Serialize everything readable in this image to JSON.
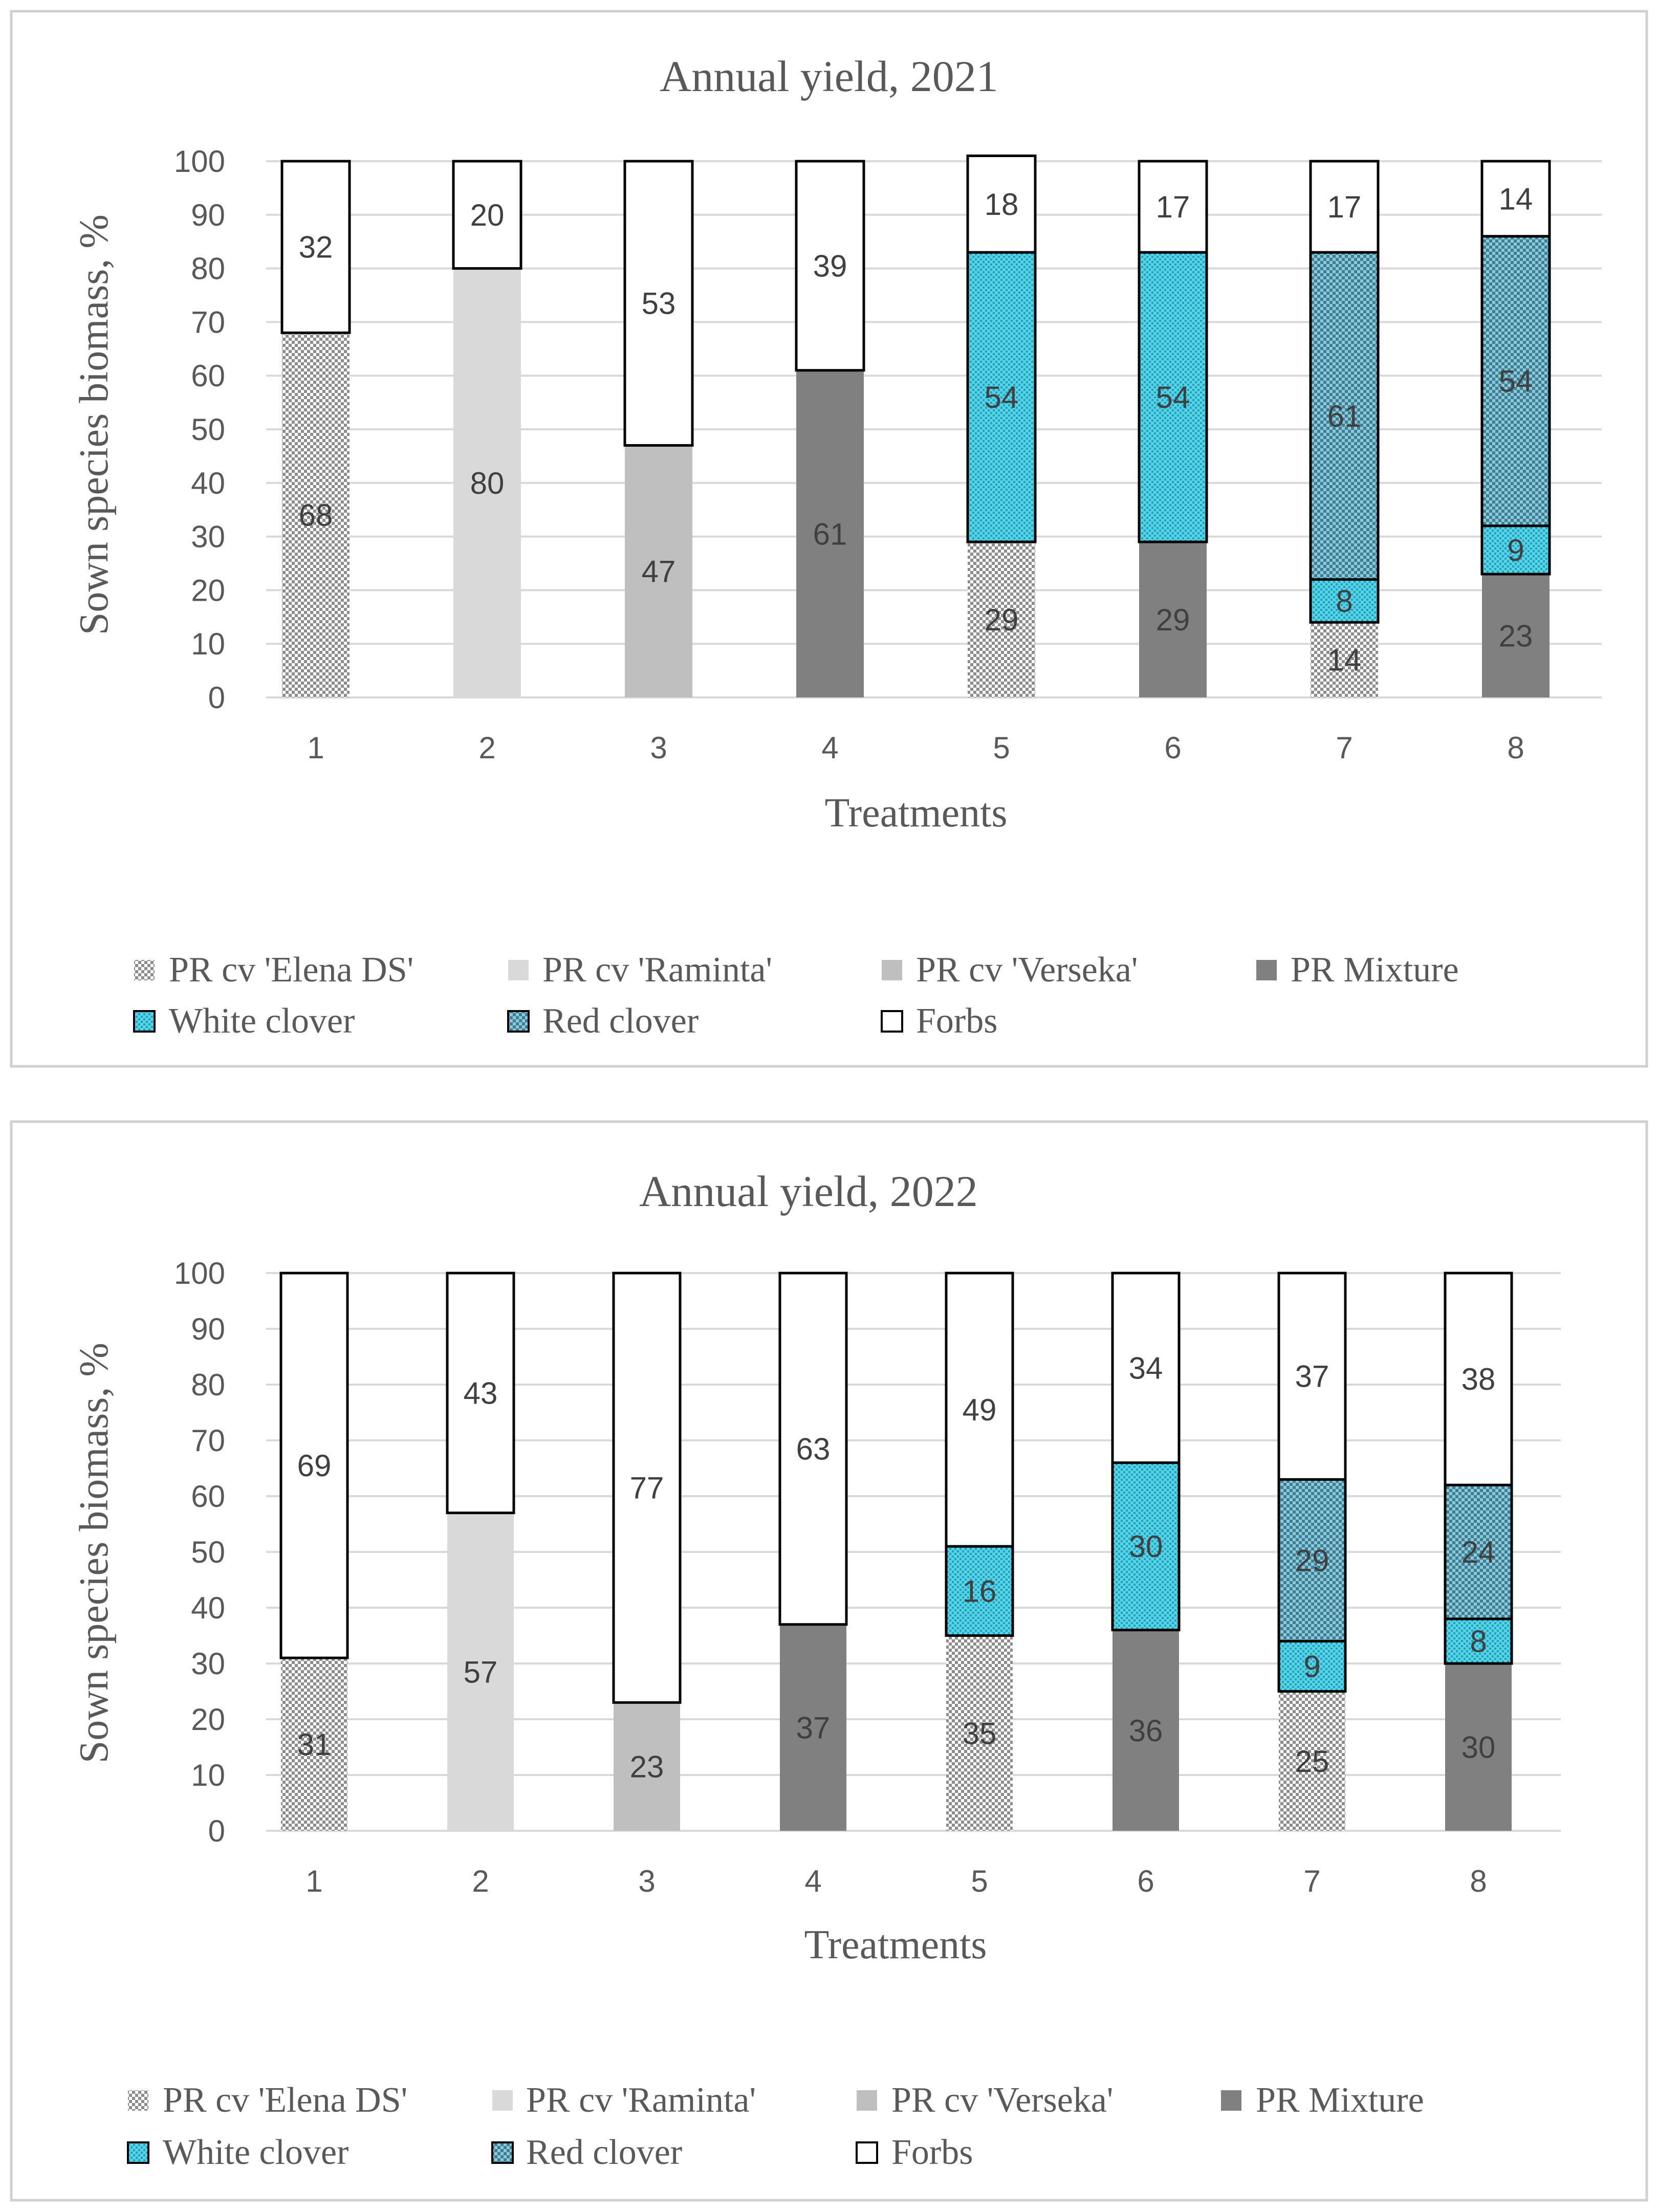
{
  "chart_data": [
    {
      "type": "bar",
      "stacked": true,
      "title": "Annual yield, 2021",
      "xlabel": "Treatments",
      "ylabel": "Sown species biomass, %",
      "ylim": [
        0,
        100
      ],
      "yticks": [
        0,
        10,
        20,
        30,
        40,
        50,
        60,
        70,
        80,
        90,
        100
      ],
      "grid": true,
      "categories": [
        "1",
        "2",
        "3",
        "4",
        "5",
        "6",
        "7",
        "8"
      ],
      "series": [
        {
          "name": "PR cv 'Elena DS'",
          "values": [
            68,
            null,
            null,
            null,
            29,
            null,
            14,
            null
          ]
        },
        {
          "name": "PR cv 'Raminta'",
          "values": [
            null,
            80,
            null,
            null,
            null,
            null,
            null,
            null
          ]
        },
        {
          "name": "PR cv 'Verseka'",
          "values": [
            null,
            null,
            47,
            null,
            null,
            null,
            null,
            null
          ]
        },
        {
          "name": "PR Mixture",
          "values": [
            null,
            null,
            null,
            61,
            null,
            29,
            null,
            23
          ]
        },
        {
          "name": "White clover",
          "values": [
            null,
            null,
            null,
            null,
            54,
            54,
            8,
            9
          ]
        },
        {
          "name": "Red clover",
          "values": [
            null,
            null,
            null,
            null,
            null,
            null,
            61,
            54
          ]
        },
        {
          "name": "Forbs",
          "values": [
            32,
            20,
            53,
            39,
            18,
            17,
            17,
            14
          ]
        }
      ],
      "legend_position": "bottom"
    },
    {
      "type": "bar",
      "stacked": true,
      "title": "Annual yield, 2022",
      "xlabel": "Treatments",
      "ylabel": "Sown species biomass, %",
      "ylim": [
        0,
        100
      ],
      "yticks": [
        0,
        10,
        20,
        30,
        40,
        50,
        60,
        70,
        80,
        90,
        100
      ],
      "grid": true,
      "categories": [
        "1",
        "2",
        "3",
        "4",
        "5",
        "6",
        "7",
        "8"
      ],
      "series": [
        {
          "name": "PR cv 'Elena DS'",
          "values": [
            31,
            null,
            null,
            null,
            35,
            null,
            25,
            null
          ]
        },
        {
          "name": "PR cv 'Raminta'",
          "values": [
            null,
            57,
            null,
            null,
            null,
            null,
            null,
            null
          ]
        },
        {
          "name": "PR cv 'Verseka'",
          "values": [
            null,
            null,
            23,
            null,
            null,
            null,
            null,
            null
          ]
        },
        {
          "name": "PR Mixture",
          "values": [
            null,
            null,
            null,
            37,
            null,
            36,
            null,
            30
          ]
        },
        {
          "name": "White clover",
          "values": [
            null,
            null,
            null,
            null,
            16,
            30,
            9,
            8
          ]
        },
        {
          "name": "Red clover",
          "values": [
            null,
            null,
            null,
            null,
            null,
            null,
            29,
            24
          ]
        },
        {
          "name": "Forbs",
          "values": [
            69,
            43,
            77,
            63,
            49,
            34,
            37,
            38
          ]
        }
      ],
      "legend_position": "bottom"
    }
  ],
  "styles": {
    "PR cv 'Elena DS'": {
      "kind": "dots",
      "fill": "#ffffff",
      "ink": "#8c8c8c",
      "stroke": "none"
    },
    "PR cv 'Raminta'": {
      "kind": "solid",
      "fill": "#d9d9d9",
      "stroke": "none"
    },
    "PR cv 'Verseka'": {
      "kind": "solid",
      "fill": "#bfbfbf",
      "stroke": "none"
    },
    "PR Mixture": {
      "kind": "solid",
      "fill": "#808080",
      "stroke": "none"
    },
    "White clover": {
      "kind": "dots",
      "fill": "#4fd3ea",
      "ink": "#2a8fa3",
      "stroke": "#000000"
    },
    "Red clover": {
      "kind": "check",
      "fill": "#3f7f95",
      "ink": "#9fd3e0",
      "stroke": "#000000"
    },
    "Forbs": {
      "kind": "solid",
      "fill": "#ffffff",
      "stroke": "#000000"
    },
    "gridline": "#d9d9d9",
    "frame": "#d0d0d0"
  }
}
